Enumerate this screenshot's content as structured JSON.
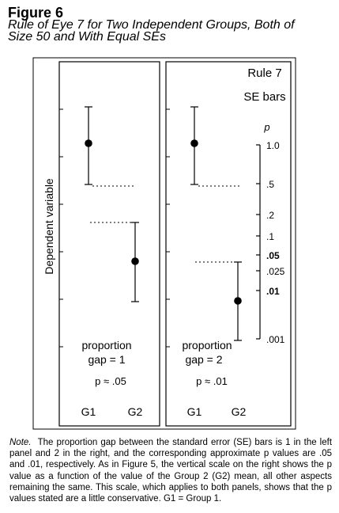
{
  "figure": {
    "label": "Figure 6",
    "title_line1": "Rule of Eye 7 for Two Independent Groups, Both of",
    "title_line2": "Size 50 and With Equal SEs"
  },
  "chart": {
    "ylabel": "Dependent variable",
    "right_panel_title1": "Rule 7",
    "right_panel_title2": "SE bars",
    "left_panel": {
      "proportion_label": "proportion",
      "gap_label": "gap = 1",
      "p_label": "p ≈ .05",
      "x_ticks": [
        "G1",
        "G2"
      ]
    },
    "right_panel": {
      "proportion_label": "proportion",
      "gap_label": "gap = 2",
      "p_label": "p ≈ .01",
      "x_ticks": [
        "G1",
        "G2"
      ]
    },
    "p_scale": {
      "title": "p",
      "ticks": [
        "1.0",
        ".5",
        ".2",
        ".1",
        ".05",
        ".025",
        ".01",
        ".001"
      ]
    }
  },
  "chart_data": {
    "type": "scatter",
    "ylabel": "Dependent variable",
    "panels": [
      {
        "name": "left",
        "categories": [
          "G1",
          "G2"
        ],
        "means": [
          0.85,
          0.55
        ],
        "se_lower": [
          0.73,
          0.43
        ],
        "se_upper": [
          0.97,
          0.67
        ],
        "proportion_gap": 1,
        "p": ".05"
      },
      {
        "name": "right",
        "categories": [
          "G1",
          "G2"
        ],
        "means": [
          0.85,
          0.43
        ],
        "se_lower": [
          0.73,
          0.31
        ],
        "se_upper": [
          0.97,
          0.55
        ],
        "proportion_gap": 2,
        "p": ".01"
      }
    ]
  },
  "note": {
    "lead": "Note.",
    "text": "The proportion gap between the standard error (SE) bars is 1 in the left panel and 2 in the right, and the corresponding approximate p values are .05 and .01, respectively. As in Figure 5, the vertical scale on the right shows the p value as a function of the value of the Group 2 (G2) mean, all other aspects remaining the same. This scale, which applies to both panels, shows that the p values stated are a little conservative. G1 = Group 1."
  }
}
